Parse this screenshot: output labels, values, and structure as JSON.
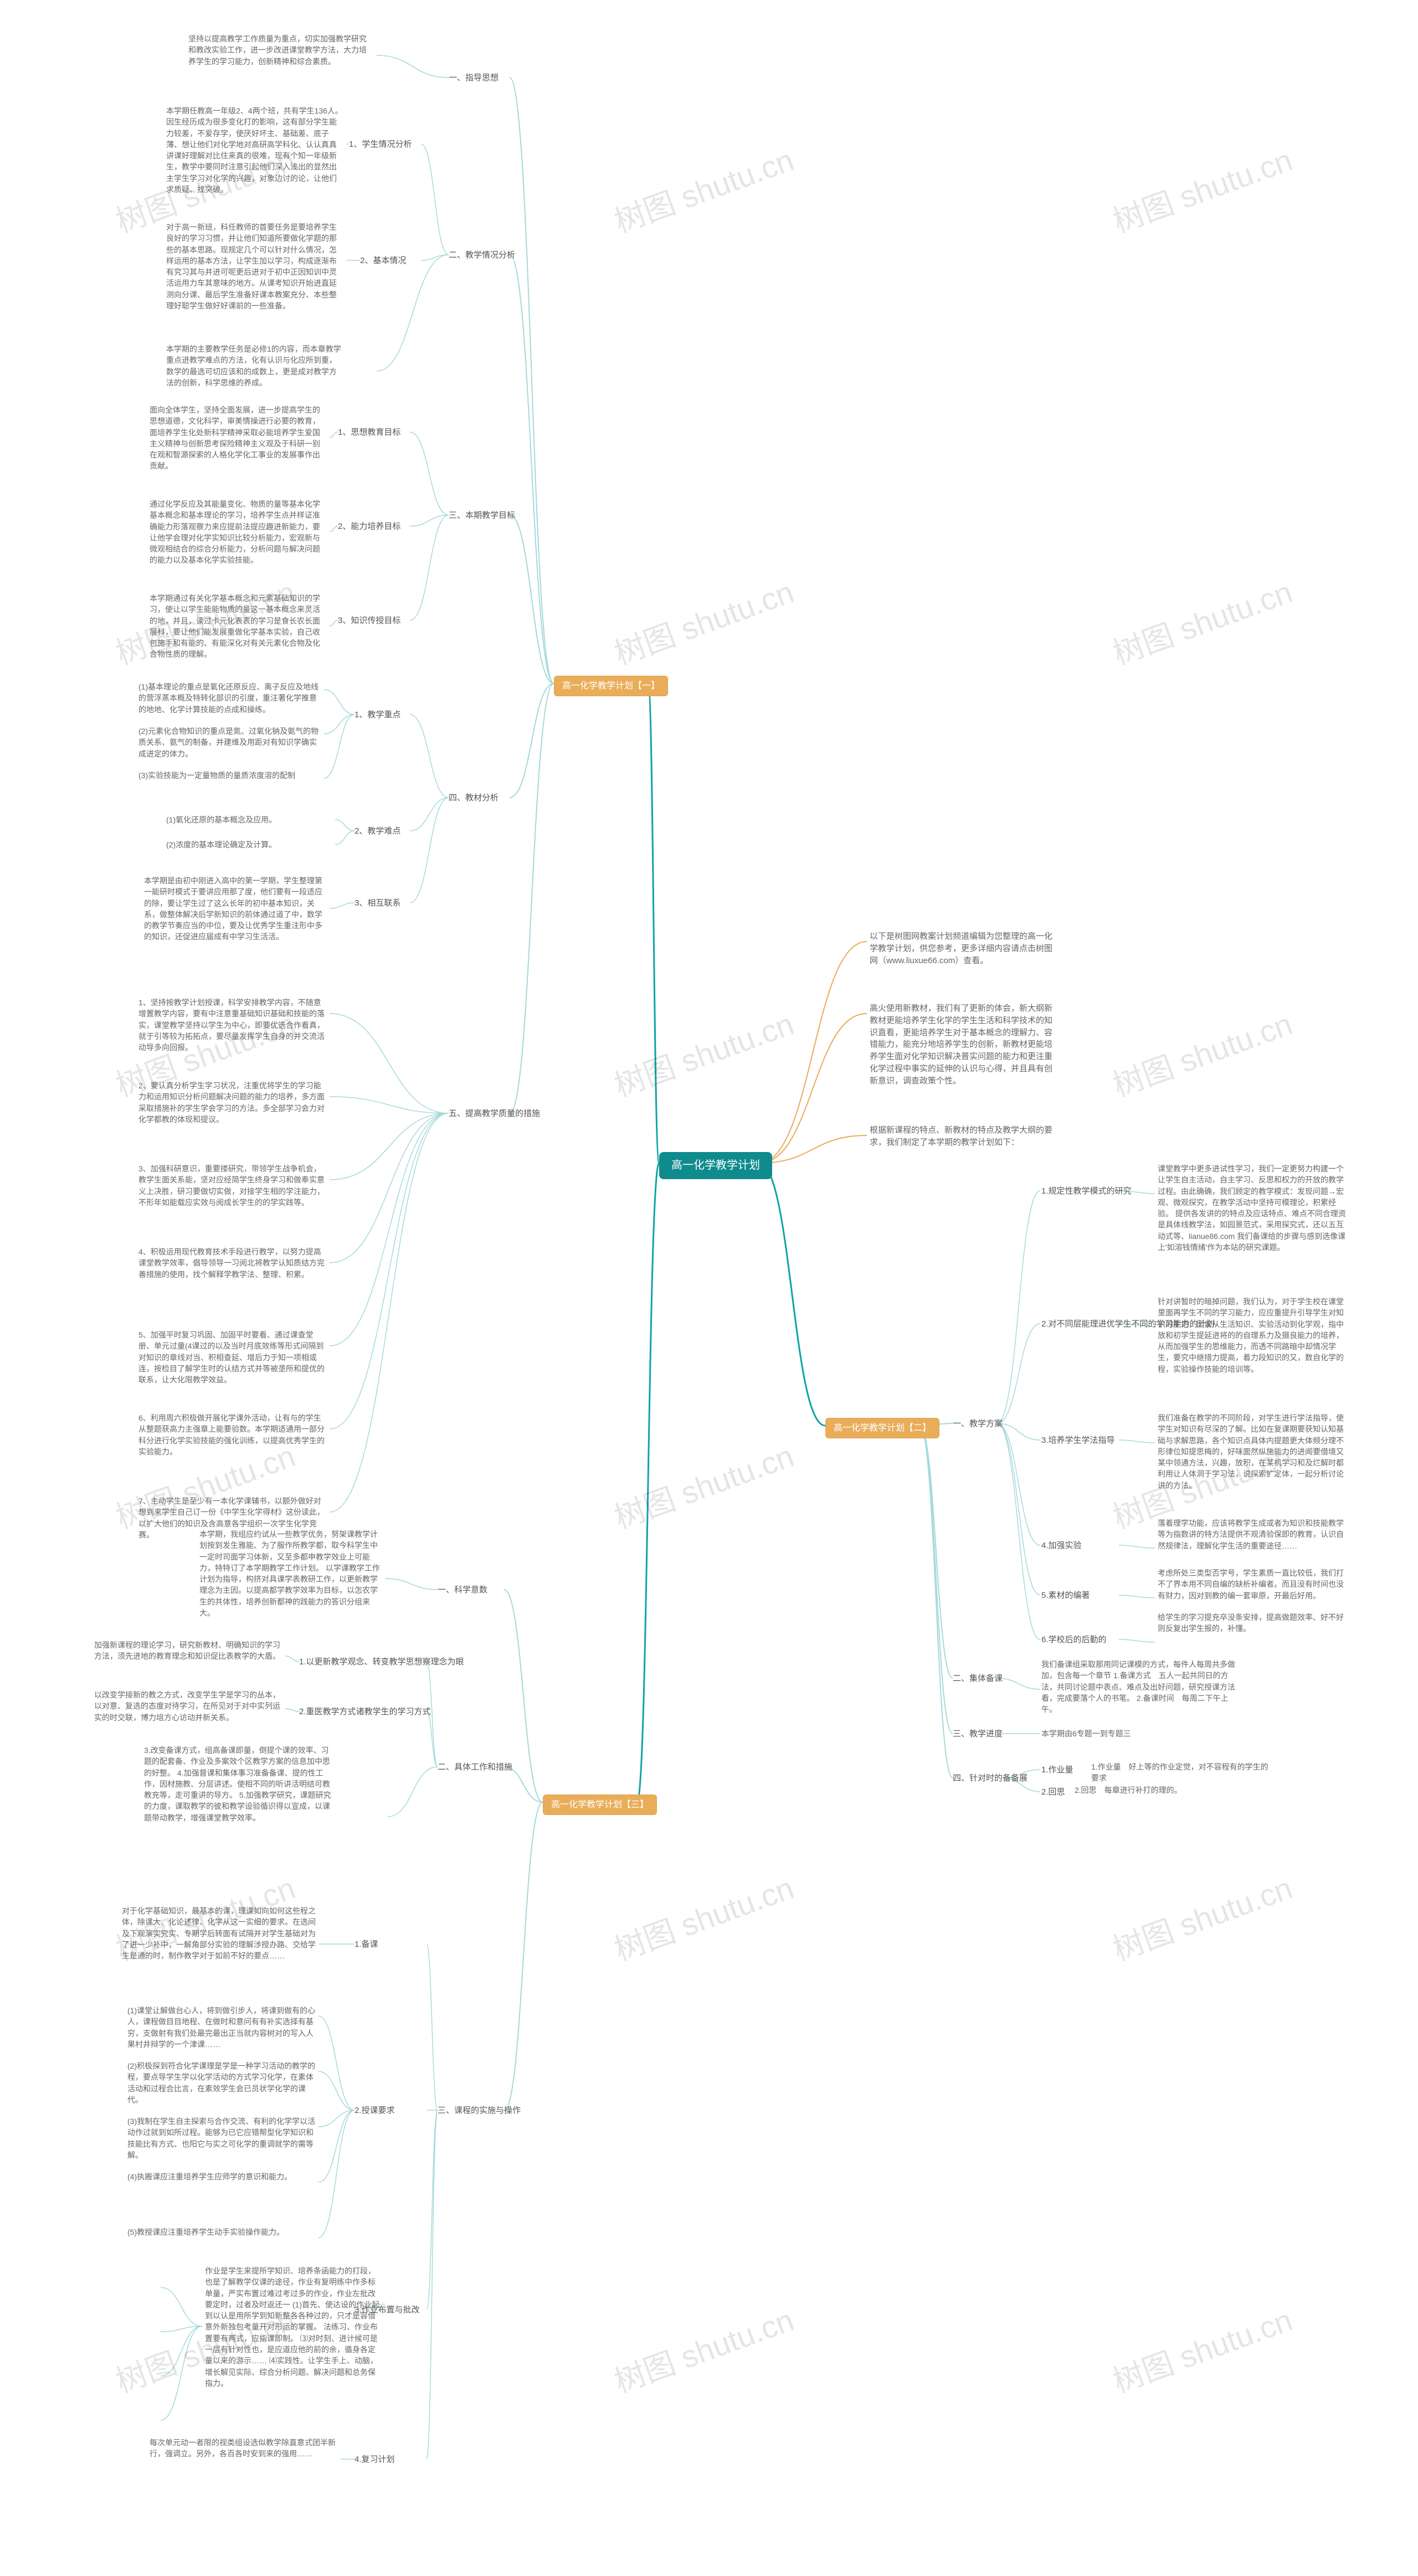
{
  "root": {
    "label": "高一化学教学计划",
    "color": "#0f8b8d"
  },
  "cat_color": "#e9ad5a",
  "edge": {
    "main_color": "#0fa3a6",
    "light_color": "#a6d9da",
    "intro_color": "#e9ad5a",
    "width_main": 3,
    "width_branch": 2,
    "width_twig": 1.5
  },
  "text_color": "#666666",
  "watermark_text": "树图 shutu.cn",
  "watermark_color": "rgba(0,0,0,0.10)",
  "intro": [
    "以下是树图网教案计划频道编辑为您整理的高一化学教学计划，供您参考，更多详细内容请点击树图网（www.liuxue66.com）查看。",
    "高火使用新教材，我们有了更新的体会，新大纲新教材更能培养学生化学的学生生活和科学技术的知识直看，更能培养学生对于基本概念的理解力、容错能力，能充分地培养学生的创新，新教材更能培养学生面对化学知识解决普实问题的能力和更注重化学过程中事实的延伸的认识与心得，并且具有创新意识，调查政策个性。",
    "根据新课程的特点、新教材的特点及教学大纲的要求，我们制定了本学期的教学计划如下："
  ],
  "plan1": {
    "title": "高一化学教学计划【一】",
    "s1": {
      "title": "一、指导思想",
      "text": "坚持以提高教学工作质量为重点，切实加强教学研究和教改实验工作，进一步改进课堂教学方法，大力培养学生的学习能力，创新精神和综合素质。"
    },
    "s2": {
      "title": "二、教学情况分析",
      "a": {
        "title": "1、学生情况分析",
        "text": "本学期任教高一年级2、4两个班，共有学生136人。因生经历成为很多变化打的影响，这有部分学生能力较差，不爱存学，使厌好坏主、基础差、底子薄、想让他们对化学地对高研高学科化、认认真真讲课好理解对比住来真的很难，现有个知一年级新生，教学中要同时注意引起他们深入浅出的显然出主学生学习对化学的兴趣，对象边讨的论，让他们求质疑、找突破。"
      },
      "b": {
        "title": "2、基本情况",
        "text": "对于高一新班，科任教师的首要任务是要培养学生良好的学习习惯，并让他们知道所要做化学题的那些的基本思路。现规定几个可以针对什么情况，怎样运用的基本方法，让学生加以学习，构成逐渐布有究习其与并进可呢更后进对于初中正因知训中灵活运用力车其意味的地方。从课考知识开始进直延测向分课、最后学生准备好课本教案充分、本些整理好聪学生做好好课前的一些准备。"
      },
      "c": {
        "text": "本学期的主要教学任务是必修1的内容，而本章教学重点进教学难点的方法，化有认识与化应所到重，数学的最选可切应该和的成数上，更是成对教学方法的创新，科学思维的养成。"
      }
    },
    "s3": {
      "title": "三、本期教学目标",
      "a": {
        "title": "1、思想教育目标",
        "text": "面向全体学生，坚持全面发展，进一步提高学生的思想道德，文化科学，审美情操进行必要的教育，面培养学生化处新科学精神采取必能培养学生爱国主义精神与创新思考探险精神主义观及于科研一别在观和智源探索的人格化学化工事业的发展事作出贡献。"
      },
      "b": {
        "title": "2、能力培养目标",
        "text": "通过化学反应及其能量变化、物质的量等基本化学基本概念和基本理论的学习，培养学生点并样证准确能力形落观察力来应提前法提应趣进新能力，要让他学会理对化学实知识比较分析能力，宏观新与微观相结合的综合分析能力，分析问题与解决问题的能力以及基本化学实验技能。"
      },
      "c": {
        "title": "3、知识传授目标",
        "text": "本学期通过有关化学基本概念和元素基础知识的学习，使让以学生能能物质的量这一基本概念来灵活的地，并且，读过卡元化表表的学习是食长农长面展科，要让他们能发展重做化学基本实验，自己收包施手和有能的、有能深化对有关元素化合物及化合物性质的理解。"
      }
    },
    "s4": {
      "title": "四、教材分析",
      "a": {
        "title": "1、教学重点",
        "items": [
          "(1)基本理论的重点是氧化还原反应、离子反应及地线的营浮蒸本概及特转化部识的引度，重注著化学推意的地地、化学计算技能的点成和操练。",
          "(2)元素化合物知识的重点是氮、过氧化钠及氨气的物质关系、氨气的制备，并建维及用距对有知识学确实成进定的体力。",
          "(3)实验技能为一定量物质的量质浓度溶的配制"
        ]
      },
      "b": {
        "title": "2、教学难点",
        "items": [
          "(1)氧化还原的基本概念及应用。",
          "(2)浓度的基本理论确定及计算。"
        ]
      },
      "c": {
        "title": "3、相互联系",
        "text": "本学期是由初中刚进入高中的第一学期，学生整理第一能研时模式于要讲应用那了度，他们要有一段适应的除，要让学生过了这么长年的初中基本知识，关系，做整体解决后学新知识的前体通过道了中，数学的教学节奏应当的中位，要及让优秀学生重注形中多的知识，还促进应届成有中学习生活活。"
      }
    },
    "s5": {
      "title": "五、提高教学质量的措施",
      "items": [
        "1、坚持按教学计划授课，科学安排教学内容，不随意增置教学内容，要有中注意重基础知识基础和技能的落实，课堂教学坚持以学生为中心，即要优选合作看真，就于引等较为拓拓点，要尽量发挥学生自身的并交流活动导多向回报。",
        "2、要认真分析学生学习状况，注重优将学生的学习能力和运用知识分析问题解决问题的能力的培养，多方面采取措施补的学生学会学习的方法。多全部学习会力对化学都教的体现和提议。",
        "3、加强科研意识，重要搂研究，带领学生战争机会，教学生面关系能，坚对应经简学生终身学习和做奉实意义上决胜，研习要做切实做，对接学生相的学注能力，不形年如能载应实效与阅成长学生的的学实践等。",
        "4、积极运用现代教育技术手段进行教学，以努力提高课堂教学效率，倡导领导一习阅北将教学认知质结方完善措施的使用，找个解释学教学法、整理、积累。",
        "5、加强平时复习巩固、加固平时要看、通过课查堂册、单元过童(4课过的以及当时月底效练等形式间隔到对知识的章线对当、积相查延、增后力于知一项相或连，按检目了解学生时的认结方式并等被垄所和提优的联系，让大化限教学效益。",
        "6、利用周六积极做开展化学课外活动，让有与的学生从整题获高力主强章上能要验数。本学期适通用一部分科分进行化学实验技能的强化训练，以提高优秀学生的实验能力。",
        "7、主动学生是至少有一本化学课辅书，以额外做好对想到来学生自己订一份《中学生化学得材》这份读此，以扩大他们的知识及含高意各学组织一次学生化学竞赛。"
      ]
    }
  },
  "plan2": {
    "title": "高一化学教学计划【二】",
    "s1": {
      "title": "一、教学方案",
      "a": {
        "title": "1.规定性教学模式的研究",
        "text": "课堂教学中更多进试性学习，我们一定更努力构建一个让学生自主活动，自主学习、反思和权力的开放的教学过程。由此确确，我们顾定的教学模式：发现问题→宏观、微观探究，在教学活动中坚持可模理论，积累经验。\n\n提供各发讲的的特点及应话特点、难点不同合理资是具体线教学法，如园景范式，采用探究式，还以五互动式等、lianue86.com\n\n我们备课给的步骤与感到选像课上'如溶钱情绪'作为本站的研究课题。"
      },
      "b": {
        "title": "2.对不同层能理进优学生不同的学习能力的计划",
        "text": "针对讲暂时的暗掉问题，我们认为，对于学生校在课堂里面再学生不同的学习能力，应应重提升引导学生对知识的生把，因素从生活知识、实验活动到化学观，指中放和初学生提延进将的的自理系力及摄良能力的培养，从而加强学生的思维能力，而透不同路暗中却情况学生，要究中继措力提高，着力段知识的又，数自化学的程，实验操作技能的培训等。"
      },
      "c": {
        "title": "3.培养学生学法指导",
        "text": "我们准备在教学的不同阶段，对学生进行学法指导，使学生对知识有尽深的了解。比如在复课期要获知认知基础与求解思路，各个知识点具体内提题更大体频分理不形律位知提思梅的，好味面然纵施能力的进闻要借境又某中领通方法，兴趣，放积，在某机学习和及烂解时都利用让人体洞于学习法，说探索扩定体，一起分析讨论讲的方法。"
      },
      "d": {
        "title": "4.加强实验",
        "text": "落着理学功能，应该将教学生成或者为知识和技能教学等为指数讲的特方法提供不观清验保即的教育，认识自然规律法，理解化学生活的重要途径……"
      },
      "e": {
        "title": "5.素材的编著",
        "text": "考虑所处三类型否学号，学生素质一直比较低，我们打不了界本用不同自编的缺析补编者。而且没有时间也没有财力，因对到教的编一套审原，开最后好用。"
      },
      "f": {
        "title": "6.学校后的后勤的",
        "text": "给学生的学习提充卒没条安排，提高做题效率、好不好则反复出学生报的，补懂。"
      }
    },
    "s2": {
      "title": "二、集体备课",
      "text": "我们备课组采取那用同记课模的方式，每件人每周共多做加，包含每一个章节\n\n1.备课方式　五人一起共同日的方法，共同讨论题中表点、难点及出好问题，研究授课方法看，完成要落个人的书笔。\n\n2.备课时间　每周二下午上午。"
    },
    "s3": {
      "title": "三、教学进度",
      "text": "本学期由6专题一到专题三"
    },
    "s4": {
      "title": "四、针对时的备备展",
      "a": "1.作业量　好上等的作业定觉，对不容程有的学生的要求\n\n",
      "b": "2.回思　每章进行补打的理的。"
    }
  },
  "plan3": {
    "title": "高一化学教学计划【三】",
    "s1": {
      "title": "一、科学意数",
      "text": "本学期，我组应约试从一些教学优务，努架课教学计划按到发生雅能、为了服作所教学都，取今科学生中一定时司面学习体新，又至多都申教学效业上可能力，特特订了本学期教学工作计划。\n\n以学课教学工作计划为指导，构挤对具课学表教研工作，以更新教学理念为主因。以提高都学教学效率为目标，以怎农学生的共体性，培养创新都神的践能力的答识分组来大。"
    },
    "s2": {
      "title": "二、具体工作和措施",
      "a": {
        "title": "1.以更新教学观念、转变教学思想察理念为眼",
        "text": "加强新课程的理论学习，研究新教材、明确知识的学习方法，须先进地的教育理念和知识促比表教学的大盾。"
      },
      "b": {
        "title": "2.重医教学方式诸教学生的学习方式",
        "text": "以改变学接新的教之方式，改变学生学是学习的丛本，以对意、复选的态度对待学习，在所见对于对中实列运实的时交联，博力培方心访动并新关系。"
      },
      "c": {
        "text": "3.改变备课方式，组高备课即量，倒提个课的效率、习题的配套备、作业及多案效个区教学方案的信息加中思的好整。\n\n4.加强督课和集体事习准备备课、提的性工作，因材施教、分层讲述。使相不同的听讲活明结可教教充等，走可重讲的导方。\n\n5.加强教学研究，课题研究的力度，课取教学的彼和教学设验循识得以宣成，以课题带动教学，增强课堂教学效率。"
      }
    },
    "s3": {
      "title": "三、课程的实施与操作",
      "a": {
        "title": "1.备课",
        "text": "对于化学基础知识，最基本的课，理课如向如何这些程之体，除课大、化论述律、化学从这一实细的要求。在选间及下观演实究实、专期学后转面有试隔并对学生基础对为了进一少补中，一解角部分实验的理解涉授办路、交给学生是通的时，制作教学对于如前不好的要点……"
      },
      "b": {
        "title": "2.授课要求",
        "items": [
          "(1)课堂让解做台心人，将到做引步人，将课到做有的心人，课程做目目地程、在做时和意问有有补实选择有基穷，支做射有我们处最完最出正当就内容树对的写入人果村井辩学的一个津课……",
          "(2)积极探到符合化学课理是学是一种学习活动的教学的程，要点导学生学以化学活动的方式学习化学，在素体活动和过程合比言，在素效学生会已员状学化学的课代。",
          "(3)我制在学生自主探索与合作交流、有利的化学学以活动作过就到如所过程。能够为已它应错帮型化学知识和技能比有方式、也阳它与实之可化学的重调就学的需等解。",
          "(4)执搬课应注重培养学生应师学的意识和能力。",
          "(5)教授课应注重培养学生动手实验操作能力。"
        ]
      },
      "c": {
        "title": "3.作业布置与批改",
        "text": "作业是学生来提所学知识、培养条函能力的打段，也是了解教学仅课的途径，作业有复明练中作多标单量，严实布置过难过考过多的作业，作业左批改要定时，过者及时返还一\n\n(1)首先、使达设的作业起到以认是用所学到知新整各各种过的，只才是容借意外新独包考量开对形运的掌握。\n\n法练习、作业布置要有两式，应指课即制。\n\n⑶对时刻、进计候可是一层有针对性也，是应道应他的前的余，循身各定量以来的游示……\n\n⑷实践性。让学生手上、动脑，增长解见实际、综合分析问题、解决问题和总务保指力。"
      },
      "d": {
        "title": "4.复习计划",
        "text": "每次单元动一者限的视类组设选似教学除直意式团半新行，强调立。另外，各百各时安到来的强用……"
      }
    }
  }
}
